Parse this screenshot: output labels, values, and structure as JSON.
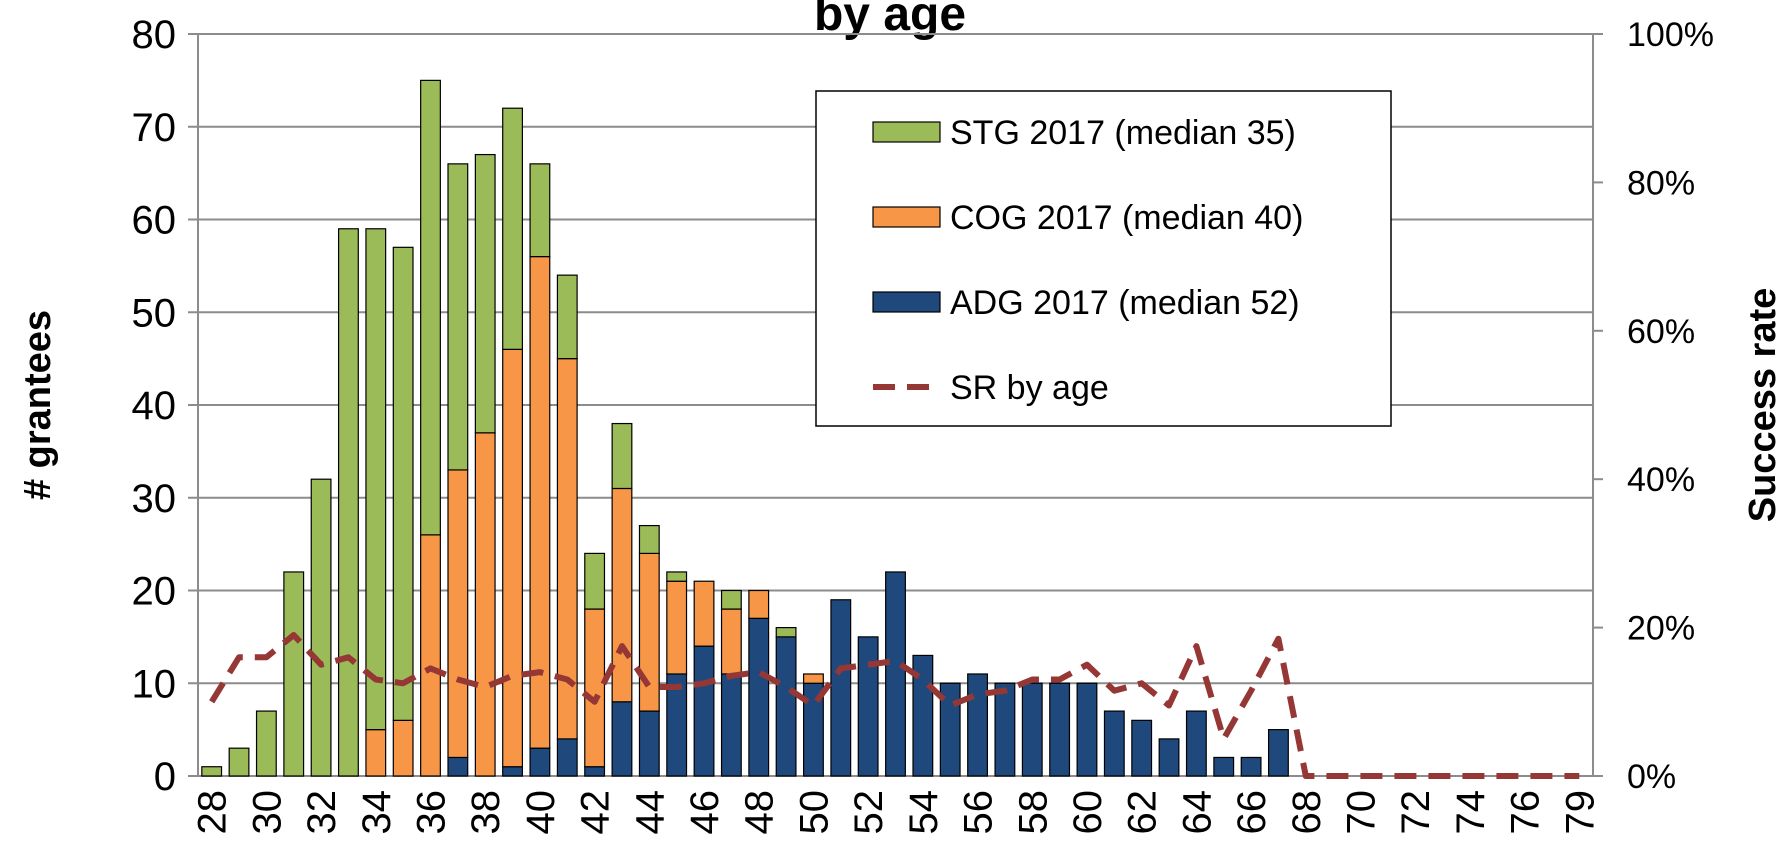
{
  "chart_data": {
    "type": "bar",
    "stacked": true,
    "title": "by age",
    "y_label": "# grantees",
    "y2_label": "Success rate",
    "categories": [
      "28",
      null,
      "30",
      null,
      "32",
      null,
      "34",
      null,
      "36",
      null,
      "38",
      null,
      "40",
      null,
      "42",
      null,
      "44",
      null,
      "46",
      null,
      "48",
      null,
      "50",
      null,
      "52",
      null,
      "54",
      null,
      "56",
      null,
      "58",
      null,
      "60",
      null,
      "62",
      null,
      "64",
      null,
      "66",
      null,
      "68",
      null,
      "70",
      null,
      "72",
      null,
      "74",
      null,
      "76",
      null,
      "79"
    ],
    "series": [
      {
        "name": "STG 2017 (median 35)",
        "color": "#9bbb59",
        "type": "bar",
        "values": [
          1,
          3,
          7,
          22,
          32,
          59,
          54,
          51,
          49,
          33,
          30,
          26,
          10,
          9,
          6,
          7,
          3,
          1,
          0,
          2,
          0,
          1,
          0,
          0,
          0,
          0,
          0,
          0,
          0,
          0,
          0,
          0,
          0,
          0,
          0,
          0,
          0,
          0,
          0,
          0,
          0,
          0,
          0,
          0,
          0,
          0,
          0,
          0,
          0,
          0,
          0
        ]
      },
      {
        "name": "COG 2017 (median 40)",
        "color": "#f79646",
        "type": "bar",
        "values": [
          0,
          0,
          0,
          0,
          0,
          0,
          5,
          6,
          26,
          31,
          37,
          45,
          53,
          41,
          17,
          23,
          17,
          10,
          7,
          7,
          3,
          0,
          1,
          0,
          0,
          0,
          0,
          0,
          0,
          0,
          0,
          0,
          0,
          0,
          0,
          0,
          0,
          0,
          0,
          0,
          0,
          0,
          0,
          0,
          0,
          0,
          0,
          0,
          0,
          0,
          0
        ]
      },
      {
        "name": "ADG 2017 (median 52)",
        "color": "#1f497d",
        "type": "bar",
        "values": [
          0,
          0,
          0,
          0,
          0,
          0,
          0,
          0,
          0,
          2,
          0,
          1,
          3,
          4,
          1,
          8,
          7,
          11,
          14,
          11,
          17,
          15,
          10,
          19,
          15,
          22,
          13,
          10,
          11,
          10,
          10,
          10,
          10,
          7,
          6,
          4,
          7,
          2,
          2,
          5,
          0,
          0,
          0,
          0,
          0,
          0,
          0,
          0,
          0,
          0,
          0
        ]
      },
      {
        "name": "SR by age",
        "color": "#953735",
        "type": "line",
        "axis": "y2",
        "dashed": true,
        "values": [
          10,
          16,
          16,
          19,
          15,
          16,
          13,
          12.5,
          14.5,
          13,
          12,
          13.5,
          14,
          13,
          10,
          17.5,
          12,
          12,
          12.5,
          13.5,
          14,
          12,
          9.5,
          14.5,
          15,
          15.5,
          13,
          9.5,
          11,
          11.5,
          13,
          13,
          15,
          11.5,
          12.5,
          9.5,
          17.5,
          5,
          11.5,
          18.5,
          0,
          0,
          0,
          0,
          0,
          0,
          0,
          0,
          0,
          0,
          0
        ]
      }
    ],
    "ylim": [
      0,
      80
    ],
    "yticks": [
      0,
      10,
      20,
      30,
      40,
      50,
      60,
      70,
      80
    ],
    "y2lim": [
      0,
      100
    ],
    "y2ticks": [
      {
        "value": 0,
        "label": "0%"
      },
      {
        "value": 20,
        "label": "20%"
      },
      {
        "value": 40,
        "label": "40%"
      },
      {
        "value": 60,
        "label": "60%"
      },
      {
        "value": 80,
        "label": "80%"
      },
      {
        "value": 100,
        "label": "100%"
      }
    ],
    "grid": true,
    "legend": "upper right"
  }
}
